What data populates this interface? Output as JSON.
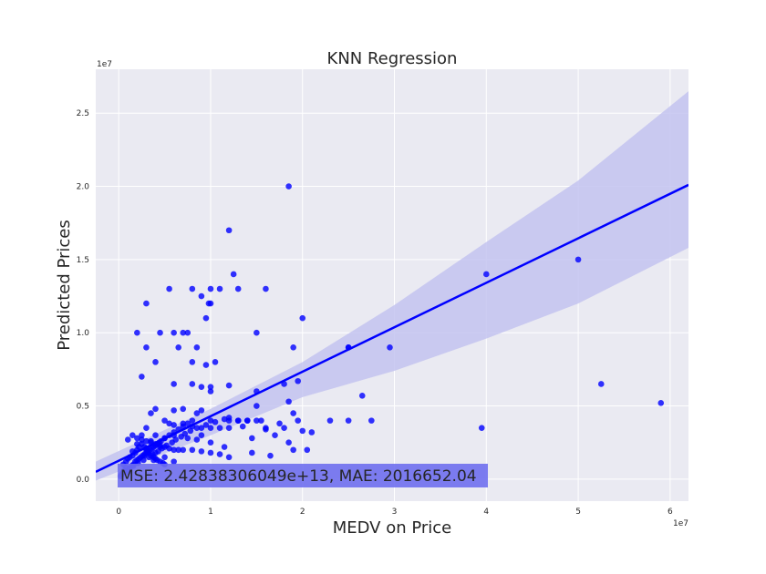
{
  "chart_data": {
    "type": "scatter",
    "title": "KNN Regression",
    "xlabel": "MEDV on Price",
    "ylabel": "Predicted Prices",
    "x_offset_label": "1e7",
    "y_offset_label": "1e7",
    "xlim": [
      -0.25,
      6.2
    ],
    "ylim": [
      -0.15,
      2.8
    ],
    "xticks": [
      0,
      1,
      2,
      3,
      4,
      5,
      6
    ],
    "yticks": [
      0.0,
      0.5,
      1.0,
      1.5,
      2.0,
      2.5
    ],
    "xtick_labels": [
      "0",
      "1",
      "2",
      "3",
      "4",
      "5",
      "6"
    ],
    "ytick_labels": [
      "0.0",
      "0.5",
      "1.0",
      "1.5",
      "2.0",
      "2.5"
    ],
    "grid": true,
    "point_color": "#0000ff",
    "regression_color": "#0000ff",
    "ci_color": "#c3c3f0",
    "background_color": "#eaeaf2",
    "annotation": "MSE: 2.42838306049e+13, MAE: 2016652.04",
    "annotation_bg": "#6f6fee",
    "regression_line": {
      "x": [
        -0.25,
        6.2
      ],
      "y": [
        0.05,
        2.01
      ]
    },
    "confidence_band": {
      "x": [
        -0.25,
        1.0,
        2.0,
        3.0,
        4.0,
        5.0,
        6.2
      ],
      "upper": [
        0.12,
        0.48,
        0.8,
        1.19,
        1.62,
        2.04,
        2.65
      ],
      "lower": [
        -0.01,
        0.3,
        0.56,
        0.74,
        0.96,
        1.2,
        1.58
      ]
    },
    "x": [
      1.85,
      2.5,
      1.2,
      2.0,
      1.9,
      2.5,
      2.65,
      2.95,
      4.0,
      5.0,
      0.3,
      1.0,
      0.8,
      0.45,
      0.6,
      0.9,
      1.1,
      0.7,
      0.95,
      1.25,
      0.55,
      0.75,
      1.0,
      1.3,
      1.5,
      0.65,
      0.4,
      0.85,
      1.05,
      1.6,
      0.2,
      0.25,
      0.3,
      0.8,
      1.0,
      1.95,
      1.8,
      1.5,
      1.0,
      0.9,
      0.95,
      0.8,
      0.6,
      1.2,
      1.85,
      1.95,
      0.85,
      0.6,
      2.75,
      2.0,
      1.5,
      1.8,
      1.4,
      3.95,
      5.25,
      5.9,
      0.35,
      0.4,
      0.7,
      0.9,
      1.0,
      1.2,
      1.3,
      0.5,
      0.55,
      0.6,
      0.7,
      0.8,
      0.9,
      1.0,
      1.1,
      1.2,
      1.4,
      1.5,
      1.7,
      1.9,
      2.3,
      2.5,
      0.3,
      0.4,
      0.5,
      0.6,
      0.75,
      0.85,
      1.0,
      1.15,
      1.3,
      1.45,
      1.65,
      1.85,
      2.05,
      0.15,
      0.2,
      0.25,
      0.3,
      0.35,
      0.4,
      0.45,
      0.5,
      0.55,
      0.6,
      0.65,
      0.7,
      0.8,
      0.9,
      1.0,
      1.1,
      1.2,
      0.05,
      0.08,
      0.1,
      0.12,
      0.15,
      0.18,
      0.2,
      0.22,
      0.25,
      0.28,
      0.3,
      0.32,
      0.35,
      0.38,
      0.4,
      0.42,
      0.45,
      0.48,
      0.5,
      0.02,
      0.04,
      0.06,
      0.08,
      0.1,
      0.12,
      0.14,
      0.16,
      0.18,
      0.2,
      0.22,
      0.24,
      0.26,
      0.28,
      0.3,
      0.32,
      0.34,
      0.36,
      0.38,
      0.4,
      0.42,
      0.44,
      0.46,
      0.5,
      0.55,
      0.6,
      0.65,
      0.7,
      0.75,
      0.8,
      0.9,
      0.03,
      0.07,
      0.11,
      0.16,
      0.21,
      0.27,
      0.33,
      0.37,
      0.43,
      0.47,
      0.52,
      0.58,
      0.62,
      0.68,
      0.72,
      0.78,
      0.85,
      0.95,
      1.05,
      1.15,
      0.1,
      0.2,
      0.3,
      0.4,
      0.5,
      0.6,
      0.25,
      0.35,
      0.45,
      0.15,
      0.28,
      0.38,
      1.6,
      1.75,
      1.9,
      2.1,
      1.55,
      1.35,
      1.2,
      1.45,
      1.6,
      0.98
    ],
    "y": [
      2.0,
      0.9,
      1.7,
      1.1,
      0.9,
      0.9,
      0.57,
      0.9,
      1.4,
      1.5,
      1.2,
      1.3,
      1.3,
      1.0,
      1.0,
      1.25,
      1.3,
      1.0,
      1.1,
      1.4,
      1.3,
      1.0,
      1.2,
      1.3,
      1.0,
      0.9,
      0.8,
      0.9,
      0.8,
      1.3,
      1.0,
      0.7,
      0.9,
      0.65,
      0.63,
      0.67,
      0.65,
      0.6,
      0.6,
      0.63,
      0.78,
      0.8,
      0.65,
      0.64,
      0.53,
      0.4,
      0.45,
      0.47,
      0.4,
      0.33,
      0.4,
      0.35,
      0.4,
      0.35,
      0.65,
      0.52,
      0.45,
      0.48,
      0.48,
      0.47,
      0.4,
      0.4,
      0.4,
      0.4,
      0.38,
      0.37,
      0.38,
      0.36,
      0.35,
      0.35,
      0.35,
      0.35,
      0.4,
      0.5,
      0.3,
      0.2,
      0.4,
      0.4,
      0.35,
      0.3,
      0.28,
      0.3,
      0.28,
      0.27,
      0.25,
      0.22,
      0.4,
      0.18,
      0.16,
      0.25,
      0.2,
      0.3,
      0.28,
      0.27,
      0.26,
      0.25,
      0.24,
      0.23,
      0.22,
      0.21,
      0.2,
      0.2,
      0.2,
      0.2,
      0.19,
      0.18,
      0.17,
      0.15,
      0.1,
      0.12,
      0.14,
      0.15,
      0.16,
      0.18,
      0.2,
      0.22,
      0.24,
      0.22,
      0.2,
      0.18,
      0.16,
      0.15,
      0.14,
      0.13,
      0.12,
      0.11,
      0.1,
      0.02,
      0.04,
      0.06,
      0.08,
      0.05,
      0.07,
      0.09,
      0.1,
      0.12,
      0.13,
      0.14,
      0.15,
      0.16,
      0.17,
      0.18,
      0.19,
      0.2,
      0.21,
      0.22,
      0.23,
      0.24,
      0.25,
      0.26,
      0.28,
      0.3,
      0.32,
      0.34,
      0.36,
      0.38,
      0.4,
      0.3,
      0.03,
      0.05,
      0.07,
      0.09,
      0.11,
      0.13,
      0.15,
      0.17,
      0.19,
      0.21,
      0.23,
      0.25,
      0.27,
      0.29,
      0.31,
      0.33,
      0.35,
      0.37,
      0.39,
      0.41,
      0.27,
      0.24,
      0.21,
      0.18,
      0.15,
      0.12,
      0.3,
      0.26,
      0.22,
      0.19,
      0.16,
      0.13,
      0.35,
      0.38,
      0.45,
      0.32,
      0.4,
      0.36,
      0.42,
      0.28,
      0.34,
      1.2
    ]
  }
}
